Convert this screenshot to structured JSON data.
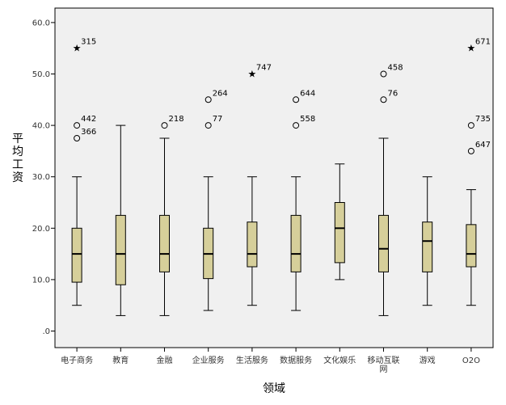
{
  "chart_data": {
    "type": "boxplot",
    "xlabel": "领域",
    "ylabel": "平均工资",
    "ylim": [
      -3,
      63
    ],
    "yticks": [
      0,
      10,
      20,
      30,
      40,
      50,
      60
    ],
    "ytick_labels": [
      ".0",
      "10.0",
      "20.0",
      "30.0",
      "40.0",
      "50.0",
      "60.0"
    ],
    "grid": false,
    "colors": {
      "plot_bg": "#f0f0f0",
      "box_fill": "#d6cf9a",
      "stroke": "#000000"
    },
    "categories": [
      "电子商务",
      "教育",
      "金融",
      "企业服务",
      "生活服务",
      "数据服务",
      "文化娱乐",
      "移动互联网",
      "游戏",
      "O2O"
    ],
    "boxes": [
      {
        "whisker_low": 5,
        "q1": 9.5,
        "median": 15,
        "q3": 20,
        "whisker_high": 30,
        "outliers": [
          {
            "value": 55,
            "marker": "star",
            "label": "315"
          },
          {
            "value": 40,
            "marker": "circle",
            "label": "442"
          },
          {
            "value": 37.5,
            "marker": "circle",
            "label": "366"
          }
        ]
      },
      {
        "whisker_low": 3,
        "q1": 9,
        "median": 15,
        "q3": 22.5,
        "whisker_high": 40,
        "outliers": []
      },
      {
        "whisker_low": 3,
        "q1": 11.5,
        "median": 15,
        "q3": 22.5,
        "whisker_high": 37.5,
        "outliers": [
          {
            "value": 40,
            "marker": "circle",
            "label": "218"
          }
        ]
      },
      {
        "whisker_low": 4,
        "q1": 10.2,
        "median": 15,
        "q3": 20,
        "whisker_high": 30,
        "outliers": [
          {
            "value": 45,
            "marker": "circle",
            "label": "264"
          },
          {
            "value": 40,
            "marker": "circle",
            "label": "77"
          }
        ]
      },
      {
        "whisker_low": 5,
        "q1": 12.5,
        "median": 15,
        "q3": 21.2,
        "whisker_high": 30,
        "outliers": [
          {
            "value": 50,
            "marker": "star",
            "label": "747"
          }
        ]
      },
      {
        "whisker_low": 4,
        "q1": 11.5,
        "median": 15,
        "q3": 22.5,
        "whisker_high": 30,
        "outliers": [
          {
            "value": 45,
            "marker": "circle",
            "label": "644"
          },
          {
            "value": 40,
            "marker": "circle",
            "label": "558"
          }
        ]
      },
      {
        "whisker_low": 10,
        "q1": 13.3,
        "median": 20,
        "q3": 25,
        "whisker_high": 32.5,
        "outliers": []
      },
      {
        "whisker_low": 3,
        "q1": 11.5,
        "median": 16,
        "q3": 22.5,
        "whisker_high": 37.5,
        "outliers": [
          {
            "value": 50,
            "marker": "circle",
            "label": "458"
          },
          {
            "value": 45,
            "marker": "circle",
            "label": "76"
          }
        ]
      },
      {
        "whisker_low": 5,
        "q1": 11.5,
        "median": 17.5,
        "q3": 21.2,
        "whisker_high": 30,
        "outliers": []
      },
      {
        "whisker_low": 5,
        "q1": 12.5,
        "median": 15,
        "q3": 20.7,
        "whisker_high": 27.5,
        "outliers": [
          {
            "value": 55,
            "marker": "star",
            "label": "671"
          },
          {
            "value": 40,
            "marker": "circle",
            "label": "735"
          },
          {
            "value": 35,
            "marker": "circle",
            "label": "647"
          }
        ]
      }
    ]
  }
}
